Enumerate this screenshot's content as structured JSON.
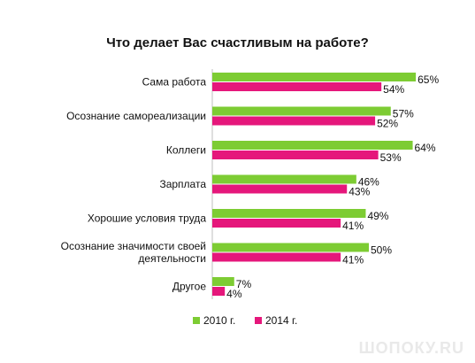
{
  "chart_data": {
    "type": "bar",
    "orientation": "horizontal",
    "title": "Что делает Вас счастливым на работе?",
    "categories": [
      [
        "Сама работа"
      ],
      [
        "Осознание самореализации"
      ],
      [
        "Коллеги"
      ],
      [
        "Зарплата"
      ],
      [
        "Хорошие условия труда"
      ],
      [
        "Осознание значимости своей",
        "деятельности"
      ],
      [
        "Другое"
      ]
    ],
    "series": [
      {
        "name": "2010 г.",
        "color": "#7dcc33",
        "values": [
          65,
          57,
          64,
          46,
          49,
          50,
          7
        ]
      },
      {
        "name": "2014 г.",
        "color": "#e5177b",
        "values": [
          54,
          52,
          53,
          43,
          41,
          41,
          4
        ]
      }
    ],
    "value_suffix": "%",
    "xlim": [
      0,
      100
    ],
    "legend_position": "bottom",
    "grid": false
  },
  "watermark": "ШОПОКУ.RU"
}
